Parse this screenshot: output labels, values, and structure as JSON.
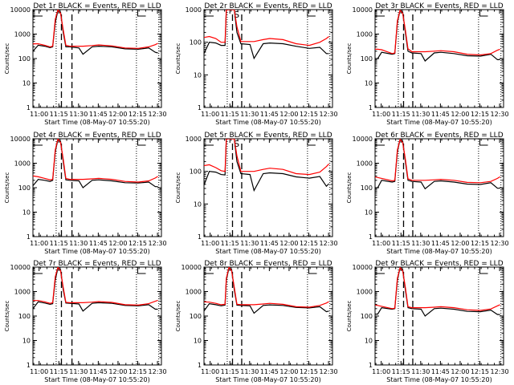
{
  "figure": {
    "series_legend": {
      "black": "Events",
      "red": "LLD"
    },
    "colors": {
      "events": "#000000",
      "lld": "#ff0000",
      "axes": "#000000",
      "background": "#ffffff"
    },
    "xlabel_prefix": "Start Time",
    "ylabel": "Counts/sec"
  },
  "chart_data": [
    {
      "type": "line",
      "title": "Det 1r BLACK = Events, RED = LLD",
      "xlabel": "Start Time (08-May-07 10:55:20)",
      "ylabel": "Counts/sec",
      "ylim": [
        1,
        10000
      ],
      "yscale": "log",
      "yticks": [
        "1",
        "10",
        "100",
        "1000",
        "10000"
      ],
      "xlim": [
        "10:55:20",
        "12:33:00"
      ],
      "xticks": [
        "11:00",
        "11:15",
        "11:30",
        "11:45",
        "12:00",
        "12:15",
        "12:30"
      ],
      "dotted_markers": [
        "11:13",
        "12:14",
        "12:31"
      ],
      "dashed_markers": [
        "11:17",
        "11:25"
      ],
      "labels": {
        "S": null,
        "E": "12:15"
      },
      "x_minutes": [
        0,
        4,
        9,
        13,
        15,
        17,
        19,
        21,
        23,
        25,
        28,
        35,
        38,
        45,
        50,
        60,
        70,
        80,
        88,
        93,
        95
      ],
      "events": [
        200,
        350,
        320,
        280,
        300,
        3000,
        9000,
        8000,
        1200,
        300,
        300,
        270,
        150,
        300,
        320,
        300,
        250,
        240,
        270,
        180,
        170
      ],
      "lld": [
        400,
        400,
        350,
        300,
        320,
        4000,
        10000,
        7000,
        1500,
        350,
        320,
        320,
        320,
        340,
        360,
        330,
        270,
        260,
        300,
        370,
        420
      ]
    },
    {
      "type": "line",
      "title": "Det 2r BLACK = Events, RED = LLD",
      "xlabel": "Start Time (08-May-07 10:55:20)",
      "ylabel": "Counts/sec",
      "ylim": [
        1,
        1000
      ],
      "yscale": "log",
      "yticks": [
        "1",
        "10",
        "100",
        "1000"
      ],
      "xlim": [
        "10:55:20",
        "12:33:00"
      ],
      "xticks": [
        "11:00",
        "11:15",
        "11:30",
        "11:45",
        "12:00",
        "12:15",
        "12:30"
      ],
      "dotted_markers": [
        "11:13",
        "12:14",
        "12:31"
      ],
      "dashed_markers": [
        "11:17",
        "11:24"
      ],
      "labels": {
        "S": "11:18",
        "E": "12:14"
      },
      "x_minutes": [
        0,
        4,
        9,
        13,
        16,
        17,
        19,
        21,
        23,
        25,
        28,
        35,
        38,
        45,
        50,
        60,
        70,
        80,
        88,
        93,
        95
      ],
      "events": [
        45,
        100,
        95,
        80,
        80,
        1000,
        1000,
        1000,
        1000,
        200,
        90,
        85,
        32,
        90,
        95,
        90,
        75,
        65,
        70,
        45,
        45
      ],
      "lld": [
        140,
        150,
        130,
        100,
        100,
        1000,
        1000,
        1000,
        1000,
        300,
        105,
        105,
        105,
        120,
        130,
        120,
        90,
        80,
        100,
        130,
        150
      ]
    },
    {
      "type": "line",
      "title": "Det 3r BLACK = Events, RED = LLD",
      "xlabel": "Start Time (08-May-07 10:55:20)",
      "ylabel": "Counts/sec",
      "ylim": [
        1,
        10000
      ],
      "yscale": "log",
      "yticks": [
        "1",
        "10",
        "100",
        "1000",
        "10000"
      ],
      "xlim": [
        "10:55:20",
        "12:33:00"
      ],
      "xticks": [
        "11:00",
        "11:15",
        "11:30",
        "11:45",
        "12:00",
        "12:15",
        "12:30"
      ],
      "dotted_markers": [
        "11:13",
        "12:14",
        "12:31"
      ],
      "dashed_markers": [
        "11:17",
        "11:24"
      ],
      "labels": {
        "S": null,
        "E": "12:15"
      },
      "x_minutes": [
        0,
        2,
        5,
        13,
        15,
        17,
        19,
        21,
        23,
        25,
        28,
        35,
        38,
        45,
        50,
        60,
        70,
        80,
        88,
        93,
        95
      ],
      "events": [
        100,
        100,
        180,
        150,
        160,
        3000,
        9000,
        8000,
        1200,
        200,
        170,
        160,
        80,
        170,
        180,
        160,
        130,
        125,
        150,
        90,
        90
      ],
      "lld": [
        240,
        240,
        230,
        160,
        170,
        3500,
        9500,
        7000,
        1500,
        250,
        190,
        190,
        190,
        200,
        210,
        190,
        150,
        140,
        160,
        220,
        240
      ]
    },
    {
      "type": "line",
      "title": "Det 4r BLACK = Events, RED = LLD",
      "xlabel": "Start Time (08-May-07 10:55:20)",
      "ylabel": "Counts/sec",
      "ylim": [
        1,
        10000
      ],
      "yscale": "log",
      "yticks": [
        "1",
        "10",
        "100",
        "1000",
        "10000"
      ],
      "xlim": [
        "10:55:20",
        "12:33:00"
      ],
      "xticks": [
        "11:00",
        "11:15",
        "11:30",
        "11:45",
        "12:00",
        "12:15",
        "12:30"
      ],
      "dotted_markers": [
        "11:13",
        "12:14",
        "12:31"
      ],
      "dashed_markers": [
        "11:17",
        "11:25"
      ],
      "labels": {
        "S": null,
        "E": "12:15"
      },
      "x_minutes": [
        0,
        4,
        9,
        13,
        15,
        17,
        19,
        21,
        23,
        25,
        28,
        35,
        38,
        45,
        50,
        60,
        70,
        80,
        88,
        93,
        95
      ],
      "events": [
        120,
        220,
        200,
        180,
        200,
        3000,
        9000,
        8000,
        1200,
        210,
        200,
        190,
        100,
        200,
        210,
        190,
        160,
        155,
        170,
        110,
        110
      ],
      "lld": [
        300,
        280,
        240,
        210,
        220,
        3500,
        10000,
        7000,
        1500,
        240,
        220,
        220,
        220,
        230,
        240,
        220,
        180,
        170,
        190,
        250,
        290
      ]
    },
    {
      "type": "line",
      "title": "Det 5r BLACK = Events, RED = LLD",
      "xlabel": "Start Time (08-May-07 10:55:20)",
      "ylabel": "Counts/sec",
      "ylim": [
        1,
        1000
      ],
      "yscale": "log",
      "yticks": [
        "1",
        "10",
        "100",
        "1000"
      ],
      "xlim": [
        "10:55:20",
        "12:33:00"
      ],
      "xticks": [
        "11:00",
        "11:15",
        "11:30",
        "11:45",
        "12:00",
        "12:15",
        "12:30"
      ],
      "dotted_markers": [
        "11:13",
        "12:14",
        "12:31"
      ],
      "dashed_markers": [
        "11:17",
        "11:24"
      ],
      "labels": {
        "S": "11:18",
        "E": "12:14"
      },
      "x_minutes": [
        0,
        4,
        9,
        13,
        16,
        17,
        19,
        21,
        23,
        25,
        28,
        35,
        38,
        45,
        50,
        60,
        70,
        80,
        88,
        93,
        95
      ],
      "events": [
        38,
        100,
        95,
        80,
        78,
        1000,
        1000,
        1000,
        1000,
        200,
        85,
        80,
        26,
        85,
        90,
        85,
        68,
        62,
        70,
        35,
        42
      ],
      "lld": [
        150,
        160,
        130,
        105,
        100,
        1000,
        1000,
        1000,
        1000,
        300,
        100,
        100,
        100,
        115,
        125,
        115,
        85,
        80,
        95,
        140,
        170
      ]
    },
    {
      "type": "line",
      "title": "Det 6r BLACK = Events, RED = LLD",
      "xlabel": "Start Time (08-May-07 10:55:20)",
      "ylabel": "Counts/sec",
      "ylim": [
        1,
        10000
      ],
      "yscale": "log",
      "yticks": [
        "1",
        "10",
        "100",
        "1000",
        "10000"
      ],
      "xlim": [
        "10:55:20",
        "12:33:00"
      ],
      "xticks": [
        "11:00",
        "11:15",
        "11:30",
        "11:45",
        "12:00",
        "12:15",
        "12:30"
      ],
      "dotted_markers": [
        "11:13",
        "12:14",
        "12:31"
      ],
      "dashed_markers": [
        "11:17",
        "11:24"
      ],
      "labels": {
        "S": null,
        "E": "12:15"
      },
      "x_minutes": [
        0,
        2,
        5,
        13,
        15,
        17,
        19,
        21,
        23,
        25,
        28,
        35,
        38,
        45,
        50,
        60,
        70,
        80,
        88,
        93,
        95
      ],
      "events": [
        100,
        100,
        200,
        170,
        180,
        3000,
        9000,
        8000,
        1200,
        200,
        180,
        170,
        90,
        180,
        190,
        170,
        140,
        135,
        160,
        95,
        95
      ],
      "lld": [
        270,
        260,
        240,
        190,
        200,
        3500,
        9500,
        7000,
        1500,
        230,
        200,
        200,
        200,
        210,
        220,
        200,
        165,
        160,
        180,
        240,
        280
      ]
    },
    {
      "type": "line",
      "title": "Det 7r BLACK = Events, RED = LLD",
      "xlabel": "Start Time (08-May-07 10:55:20)",
      "ylabel": "Counts/sec",
      "ylim": [
        1,
        10000
      ],
      "yscale": "log",
      "yticks": [
        "1",
        "10",
        "100",
        "1000",
        "10000"
      ],
      "xlim": [
        "10:55:20",
        "12:33:00"
      ],
      "xticks": [
        "11:00",
        "11:15",
        "11:30",
        "11:45",
        "12:00",
        "12:15",
        "12:30"
      ],
      "dotted_markers": [
        "11:13",
        "12:14",
        "12:31"
      ],
      "dashed_markers": [
        "11:17",
        "11:25"
      ],
      "labels": {
        "S": null,
        "E": "12:15"
      },
      "x_minutes": [
        0,
        4,
        9,
        13,
        15,
        17,
        19,
        21,
        23,
        25,
        28,
        35,
        38,
        45,
        50,
        60,
        70,
        80,
        88,
        93,
        95
      ],
      "events": [
        200,
        380,
        340,
        300,
        320,
        3000,
        9000,
        8000,
        1200,
        340,
        330,
        310,
        160,
        330,
        350,
        330,
        270,
        260,
        290,
        190,
        190
      ],
      "lld": [
        430,
        430,
        380,
        330,
        350,
        4000,
        10000,
        7000,
        1500,
        360,
        350,
        350,
        350,
        370,
        390,
        360,
        290,
        280,
        320,
        400,
        440
      ]
    },
    {
      "type": "line",
      "title": "Det 8r BLACK = Events, RED = LLD",
      "xlabel": "Start Time (08-May-07 10:55:20)",
      "ylabel": "Counts/sec",
      "ylim": [
        1,
        10000
      ],
      "yscale": "log",
      "yticks": [
        "1",
        "10",
        "100",
        "1000",
        "10000"
      ],
      "xlim": [
        "10:55:20",
        "12:33:00"
      ],
      "xticks": [
        "11:00",
        "11:15",
        "11:30",
        "11:45",
        "12:00",
        "12:15",
        "12:30"
      ],
      "dotted_markers": [
        "11:13",
        "12:14",
        "12:31"
      ],
      "dashed_markers": [
        "11:17",
        "11:24"
      ],
      "labels": {
        "S": null,
        "E": "12:15"
      },
      "x_minutes": [
        0,
        4,
        9,
        13,
        16,
        17,
        19,
        21,
        23,
        25,
        28,
        35,
        38,
        45,
        50,
        60,
        70,
        80,
        88,
        93,
        95
      ],
      "events": [
        160,
        320,
        290,
        260,
        280,
        3000,
        9000,
        8000,
        1200,
        280,
        270,
        260,
        130,
        270,
        285,
        270,
        225,
        215,
        240,
        150,
        160
      ],
      "lld": [
        380,
        370,
        330,
        290,
        300,
        3500,
        10000,
        7000,
        1500,
        300,
        290,
        290,
        290,
        310,
        330,
        300,
        240,
        230,
        270,
        340,
        390
      ]
    },
    {
      "type": "line",
      "title": "Det 9r BLACK = Events, RED = LLD",
      "xlabel": "Start Time (08-May-07 10:55:20)",
      "ylabel": "Counts/sec",
      "ylim": [
        1,
        10000
      ],
      "yscale": "log",
      "yticks": [
        "1",
        "10",
        "100",
        "1000",
        "10000"
      ],
      "xlim": [
        "10:55:20",
        "12:33:00"
      ],
      "xticks": [
        "11:00",
        "11:15",
        "11:30",
        "11:45",
        "12:00",
        "12:15",
        "12:30"
      ],
      "dotted_markers": [
        "11:13",
        "12:14",
        "12:31"
      ],
      "dashed_markers": [
        "11:17",
        "11:24"
      ],
      "labels": {
        "S": null,
        "E": "12:15"
      },
      "x_minutes": [
        0,
        2,
        5,
        13,
        15,
        17,
        19,
        21,
        23,
        25,
        28,
        35,
        38,
        45,
        50,
        60,
        70,
        80,
        88,
        93,
        95
      ],
      "events": [
        120,
        120,
        220,
        190,
        200,
        3000,
        9000,
        8000,
        1200,
        220,
        200,
        190,
        100,
        200,
        210,
        190,
        155,
        150,
        175,
        115,
        115
      ],
      "lld": [
        280,
        270,
        250,
        200,
        210,
        3500,
        9500,
        7000,
        1500,
        240,
        220,
        220,
        220,
        230,
        240,
        220,
        180,
        170,
        195,
        260,
        290
      ]
    }
  ]
}
